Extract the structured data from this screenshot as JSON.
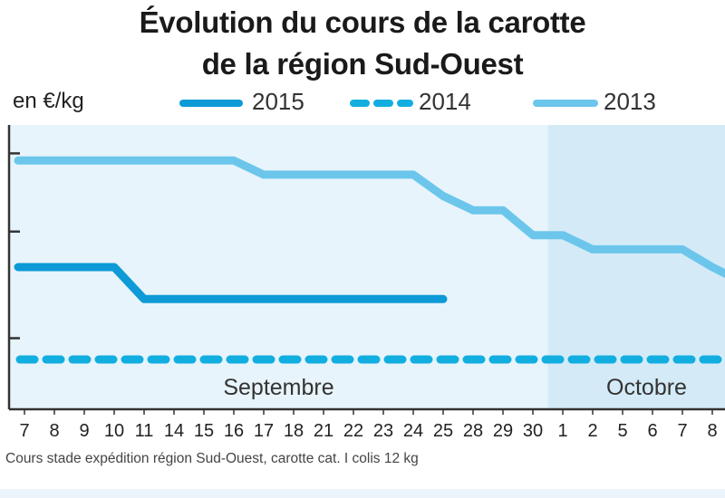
{
  "chart_data": {
    "type": "line",
    "title": [
      "Évolution du cours de la carotte",
      "de la région Sud-Ouest"
    ],
    "ylabel": "en €/kg",
    "categories": [
      "7",
      "8",
      "9",
      "10",
      "11",
      "14",
      "15",
      "16",
      "17",
      "18",
      "21",
      "22",
      "23",
      "24",
      "25",
      "28",
      "29",
      "30",
      "1",
      "2",
      "5",
      "6",
      "7",
      "8"
    ],
    "month_labels": [
      {
        "name": "Septembre",
        "from": 0,
        "to": 17
      },
      {
        "name": "Octobre",
        "from": 18,
        "to": 23
      }
    ],
    "ylim": [
      0,
      4
    ],
    "y_ticks_labeled": false,
    "series": [
      {
        "name": "2015",
        "style": "solid",
        "color": "#0d9ad6",
        "values": [
          2.0,
          2.0,
          2.0,
          2.0,
          1.55,
          1.55,
          1.55,
          1.55,
          1.55,
          1.55,
          1.55,
          1.55,
          1.55,
          1.55,
          1.55,
          null,
          null,
          null,
          null,
          null,
          null,
          null,
          null,
          null
        ]
      },
      {
        "name": "2014",
        "style": "dashed",
        "color": "#13aee0",
        "values": [
          0.7,
          0.7,
          0.7,
          0.7,
          0.7,
          0.7,
          0.7,
          0.7,
          0.7,
          0.7,
          0.7,
          0.7,
          0.7,
          0.7,
          0.7,
          0.7,
          0.7,
          0.7,
          0.7,
          0.7,
          0.7,
          0.7,
          0.7,
          0.7
        ]
      },
      {
        "name": "2013",
        "style": "solid",
        "color": "#6cc6ec",
        "values": [
          3.5,
          3.5,
          3.5,
          3.5,
          3.5,
          3.5,
          3.5,
          3.5,
          3.3,
          3.3,
          3.3,
          3.3,
          3.3,
          3.3,
          3.0,
          2.8,
          2.8,
          2.45,
          2.45,
          2.25,
          2.25,
          2.25,
          2.25,
          2.0
        ]
      }
    ],
    "grid": false,
    "legend_position": "top"
  },
  "footnote": "Cours stade expédition région Sud-Ouest, carotte cat. I colis 12 kg",
  "colors": {
    "plot_bg_september": "#e7f4fb",
    "plot_bg_october": "#d4ebf7",
    "axis": "#333333"
  }
}
